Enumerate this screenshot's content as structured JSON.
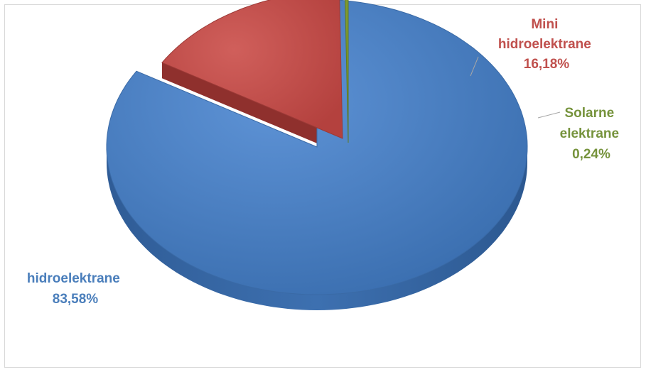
{
  "chart_data": {
    "type": "pie",
    "title": "",
    "slices": [
      {
        "label": "hidroelektrane",
        "label_lines": [
          "hidroelektrane"
        ],
        "value": 83.58,
        "value_label": "83,58%",
        "color": "#4a7ebb"
      },
      {
        "label": "Mini hidroelektrane",
        "label_lines": [
          "Mini",
          "hidroelektrane"
        ],
        "value": 16.18,
        "value_label": "16,18%",
        "color": "#c0504d"
      },
      {
        "label": "Solarne elektrane",
        "label_lines": [
          "Solarne",
          "elektrane"
        ],
        "value": 0.24,
        "value_label": "0,24%",
        "color": "#7f9a2f"
      }
    ],
    "legend": "none",
    "style": "3d-exploded"
  }
}
